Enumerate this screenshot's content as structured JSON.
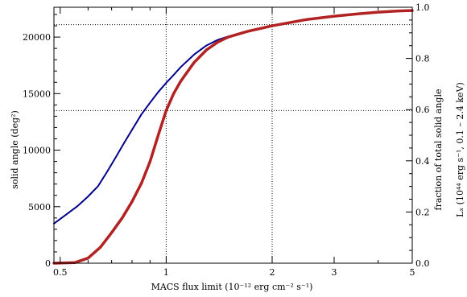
{
  "chart_data": {
    "type": "line",
    "title": "",
    "xlabel": "MACS flux limit (10⁻¹² erg cm⁻² s⁻¹)",
    "ylabel_left": "solid angle (deg²)",
    "ylabel_right_inner": "fraction of total solid angle",
    "ylabel_right_outer": "Lₓ (10⁴⁴ erg s⁻¹, 0.1 – 2.4 keV)",
    "x_scale": "log",
    "xlim": [
      0.48,
      5.0
    ],
    "ylim_left": [
      0,
      22640
    ],
    "ylim_right": [
      0.0,
      1.0
    ],
    "x_ticks": [
      {
        "value": 0.5,
        "label": "0.5"
      },
      {
        "value": 1,
        "label": "1"
      },
      {
        "value": 2,
        "label": "2"
      },
      {
        "value": 3,
        "label": "3"
      },
      {
        "value": 5,
        "label": "5"
      }
    ],
    "y_ticks_left": [
      {
        "value": 0,
        "label": "0"
      },
      {
        "value": 5000,
        "label": "5000"
      },
      {
        "value": 10000,
        "label": "10000"
      },
      {
        "value": 15000,
        "label": "15000"
      },
      {
        "value": 20000,
        "label": "20000"
      }
    ],
    "y_ticks_right": [
      {
        "value": 0.0,
        "label": "0.0"
      },
      {
        "value": 0.2,
        "label": "0.2"
      },
      {
        "value": 0.4,
        "label": "0.4"
      },
      {
        "value": 0.6,
        "label": "0.6"
      },
      {
        "value": 0.8,
        "label": "0.8"
      },
      {
        "value": 1.0,
        "label": "1.0"
      }
    ],
    "reference_lines": {
      "vertical_x": [
        1,
        2
      ],
      "horizontal_y": [
        13500,
        21100
      ]
    },
    "series": [
      {
        "color": "#00008b",
        "stroke_width": 2,
        "x": [
          0.48,
          0.52,
          0.56,
          0.6,
          0.64,
          0.68,
          0.72,
          0.76,
          0.8,
          0.85,
          0.9,
          0.95,
          1.0,
          1.05,
          1.1,
          1.2,
          1.3,
          1.4,
          1.5,
          1.7,
          2.0,
          2.5,
          3.0,
          3.5,
          4.0,
          4.5,
          5.0
        ],
        "y": [
          3500,
          4300,
          5050,
          5900,
          6800,
          8100,
          9400,
          10650,
          11800,
          13150,
          14200,
          15150,
          15950,
          16650,
          17350,
          18450,
          19250,
          19750,
          20050,
          20500,
          21000,
          21550,
          21850,
          22050,
          22200,
          22300,
          22350
        ]
      },
      {
        "color": "#b22222",
        "stroke_width": 3.5,
        "x": [
          0.48,
          0.55,
          0.6,
          0.65,
          0.7,
          0.75,
          0.8,
          0.85,
          0.9,
          0.95,
          1.0,
          1.05,
          1.1,
          1.2,
          1.3,
          1.4,
          1.5,
          1.7,
          2.0,
          2.5,
          3.0,
          3.5,
          4.0,
          4.5,
          5.0
        ],
        "y": [
          0,
          50,
          450,
          1400,
          2700,
          4000,
          5450,
          7050,
          9000,
          11350,
          13500,
          15000,
          16100,
          17750,
          18850,
          19550,
          20000,
          20500,
          21000,
          21550,
          21850,
          22050,
          22200,
          22300,
          22350
        ]
      }
    ]
  }
}
